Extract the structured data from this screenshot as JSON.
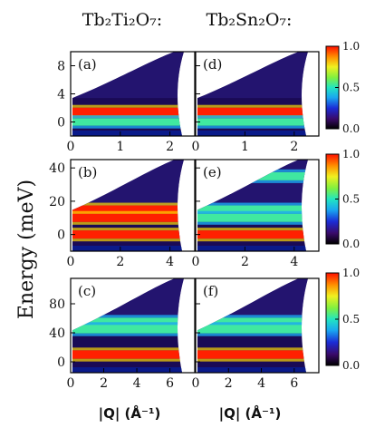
{
  "figure": {
    "column_titles": [
      "Tb₂Ti₂O₇:",
      "Tb₂Sn₂O₇:"
    ],
    "y_axis_label": "Energy (meV)",
    "x_axis_label": "|Q| (Å⁻¹)",
    "colorbar_ticks": [
      "1.0",
      "0.5",
      "0.0"
    ],
    "colors": {
      "high": "#ff2000",
      "mid": "#3cf090",
      "low": "#000000"
    }
  },
  "chart_data": [
    {
      "type": "heatmap",
      "panel": "(a)",
      "compound": "Tb₂Ti₂O₇",
      "xlim": [
        0,
        2.5
      ],
      "ylim": [
        -2,
        10
      ],
      "xticks": [
        "0",
        "1",
        "2"
      ],
      "yticks": [
        "0",
        "4",
        "8"
      ],
      "zlim": [
        0,
        1
      ],
      "bands": [
        {
          "energy": 1.5,
          "intensity": "high"
        },
        {
          "energy": 0.0,
          "intensity": "mid"
        }
      ]
    },
    {
      "type": "heatmap",
      "panel": "(d)",
      "compound": "Tb₂Sn₂O₇",
      "xlim": [
        0,
        2.5
      ],
      "ylim": [
        -2,
        10
      ],
      "xticks": [
        "0",
        "1",
        "2"
      ],
      "yticks": [
        "0",
        "4",
        "8"
      ],
      "zlim": [
        0,
        1
      ],
      "bands": [
        {
          "energy": 1.5,
          "intensity": "high"
        },
        {
          "energy": 0.0,
          "intensity": "mid"
        }
      ]
    },
    {
      "type": "heatmap",
      "panel": "(b)",
      "compound": "Tb₂Ti₂O₇",
      "xlim": [
        0,
        5
      ],
      "ylim": [
        -10,
        45
      ],
      "xticks": [
        "0",
        "2",
        "4"
      ],
      "yticks": [
        "0",
        "20",
        "40"
      ],
      "zlim": [
        0,
        1
      ],
      "bands": [
        {
          "energy": 15,
          "intensity": "high"
        },
        {
          "energy": 10,
          "intensity": "high"
        },
        {
          "energy": 0,
          "intensity": "high"
        }
      ]
    },
    {
      "type": "heatmap",
      "panel": "(e)",
      "compound": "Tb₂Sn₂O₇",
      "xlim": [
        0,
        5
      ],
      "ylim": [
        -10,
        45
      ],
      "xticks": [
        "0",
        "2",
        "4"
      ],
      "yticks": [
        "0",
        "20",
        "40"
      ],
      "zlim": [
        0,
        1
      ],
      "bands": [
        {
          "energy": 35,
          "intensity": "mid"
        },
        {
          "energy": 15,
          "intensity": "mid"
        },
        {
          "energy": 10,
          "intensity": "mid"
        },
        {
          "energy": 0,
          "intensity": "high"
        }
      ]
    },
    {
      "type": "heatmap",
      "panel": "(c)",
      "compound": "Tb₂Ti₂O₇",
      "xlim": [
        0,
        7.5
      ],
      "ylim": [
        -15,
        115
      ],
      "xticks": [
        "0",
        "2",
        "4",
        "6"
      ],
      "yticks": [
        "0",
        "40",
        "80"
      ],
      "zlim": [
        0,
        1
      ],
      "bands": [
        {
          "energy": 55,
          "intensity": "mid"
        },
        {
          "energy": 45,
          "intensity": "mid"
        },
        {
          "energy": 10,
          "intensity": "high"
        }
      ]
    },
    {
      "type": "heatmap",
      "panel": "(f)",
      "compound": "Tb₂Sn₂O₇",
      "xlim": [
        0,
        7.5
      ],
      "ylim": [
        -15,
        115
      ],
      "xticks": [
        "0",
        "2",
        "4",
        "6"
      ],
      "yticks": [
        "0",
        "40",
        "80"
      ],
      "zlim": [
        0,
        1
      ],
      "bands": [
        {
          "energy": 55,
          "intensity": "mid"
        },
        {
          "energy": 45,
          "intensity": "mid"
        },
        {
          "energy": 10,
          "intensity": "high"
        }
      ]
    }
  ]
}
